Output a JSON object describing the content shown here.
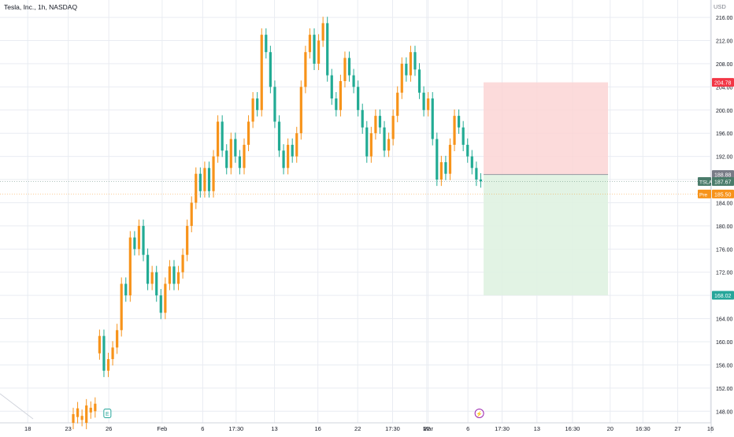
{
  "header": {
    "symbol_title": "Tesla, Inc., 1h, NASDAQ",
    "currency": "USD"
  },
  "colors": {
    "up": "#f7931a",
    "down": "#22ab94",
    "grid": "#e9ecf2",
    "stop_zone": "#fbd5d5",
    "target_zone": "#dff2e1",
    "stop_badge": "#f23645",
    "entry_badge": "#787b86",
    "last_badge": "#4b7c6b",
    "pre_badge": "#f7931a",
    "target_badge": "#26a69a"
  },
  "chart_data": {
    "type": "candlestick",
    "ylim": [
      146,
      219
    ],
    "xlim": [
      0,
      100
    ],
    "yticks": [
      148,
      152,
      156,
      160,
      164,
      168,
      172,
      176,
      180,
      184,
      188,
      192,
      196,
      200,
      204,
      208,
      212,
      216
    ],
    "xticks": [
      {
        "label": "18",
        "pos": 3.9
      },
      {
        "label": "23",
        "pos": 9.6
      },
      {
        "label": "26",
        "pos": 15.3
      },
      {
        "label": "Feb",
        "pos": 22.8
      },
      {
        "label": "6",
        "pos": 28.5
      },
      {
        "label": "17:30",
        "pos": 33.2
      },
      {
        "label": "13",
        "pos": 38.6
      },
      {
        "label": "16",
        "pos": 44.7
      },
      {
        "label": "22",
        "pos": 50.3
      },
      {
        "label": "17:30",
        "pos": 55.2
      },
      {
        "label": "27",
        "pos": 60.0
      },
      {
        "label": "Mar",
        "pos": 60.2
      },
      {
        "label": "6",
        "pos": 65.8
      },
      {
        "label": "17:30",
        "pos": 70.6
      },
      {
        "label": "13",
        "pos": 75.5
      },
      {
        "label": "16:30",
        "pos": 80.5
      },
      {
        "label": "20",
        "pos": 85.8
      },
      {
        "label": "16:30",
        "pos": 90.4
      },
      {
        "label": "27",
        "pos": 95.3
      },
      {
        "label": "16",
        "pos": 99.9
      }
    ],
    "candles": [
      [
        146,
        147.5
      ],
      [
        147,
        148.5
      ],
      [
        146.5,
        147.2
      ],
      [
        146,
        149
      ],
      [
        147.8,
        148.6
      ],
      [
        148,
        149.3
      ],
      [
        158,
        161
      ],
      [
        161,
        155
      ],
      [
        155,
        157
      ],
      [
        157,
        159
      ],
      [
        159,
        162
      ],
      [
        162,
        170
      ],
      [
        170,
        168
      ],
      [
        168,
        178
      ],
      [
        178,
        176
      ],
      [
        176,
        180
      ],
      [
        180,
        175
      ],
      [
        175,
        170
      ],
      [
        170,
        172
      ],
      [
        172,
        168
      ],
      [
        168,
        165
      ],
      [
        165,
        170
      ],
      [
        170,
        173
      ],
      [
        173,
        170
      ],
      [
        170,
        172
      ],
      [
        172,
        175
      ],
      [
        175,
        180
      ],
      [
        180,
        184
      ],
      [
        184,
        189
      ],
      [
        189,
        186
      ],
      [
        186,
        190
      ],
      [
        190,
        186
      ],
      [
        186,
        192
      ],
      [
        192,
        198
      ],
      [
        198,
        193
      ],
      [
        193,
        190
      ],
      [
        190,
        195
      ],
      [
        195,
        192
      ],
      [
        192,
        190
      ],
      [
        190,
        194
      ],
      [
        194,
        198
      ],
      [
        198,
        202
      ],
      [
        202,
        200
      ],
      [
        200,
        213
      ],
      [
        213,
        210
      ],
      [
        210,
        204
      ],
      [
        204,
        198
      ],
      [
        198,
        193
      ],
      [
        193,
        190
      ],
      [
        190,
        194
      ],
      [
        194,
        192
      ],
      [
        192,
        196
      ],
      [
        196,
        204
      ],
      [
        204,
        210
      ],
      [
        210,
        213
      ],
      [
        213,
        208
      ],
      [
        208,
        212
      ],
      [
        212,
        215
      ],
      [
        215,
        206
      ],
      [
        206,
        202
      ],
      [
        202,
        200
      ],
      [
        200,
        205
      ],
      [
        205,
        209
      ],
      [
        209,
        206
      ],
      [
        206,
        204
      ],
      [
        204,
        200
      ],
      [
        200,
        197
      ],
      [
        197,
        192
      ],
      [
        192,
        196
      ],
      [
        196,
        199
      ],
      [
        199,
        197
      ],
      [
        197,
        193
      ],
      [
        193,
        195
      ],
      [
        195,
        199
      ],
      [
        199,
        203
      ],
      [
        203,
        208
      ],
      [
        208,
        206
      ],
      [
        206,
        210
      ],
      [
        210,
        207
      ],
      [
        207,
        203
      ],
      [
        203,
        200
      ],
      [
        200,
        202
      ],
      [
        202,
        195
      ],
      [
        195,
        188
      ],
      [
        188,
        191
      ],
      [
        191,
        189
      ],
      [
        189,
        194
      ],
      [
        194,
        199
      ],
      [
        199,
        197
      ],
      [
        197,
        194
      ],
      [
        194,
        192
      ],
      [
        192,
        190
      ],
      [
        190,
        188
      ],
      [
        188,
        187.7
      ]
    ],
    "trade_box": {
      "stop": 204.78,
      "entry": 188.88,
      "target": 168.02,
      "x_start": 68.0,
      "x_end": 85.5
    },
    "price_labels": [
      {
        "text": "204.78",
        "value": 204.78,
        "kind": "stop"
      },
      {
        "text": "188.88",
        "value": 188.88,
        "kind": "entry"
      },
      {
        "text": "187.67",
        "value": 187.67,
        "kind": "last",
        "tag": "TSLA"
      },
      {
        "text": "185.50",
        "value": 185.5,
        "kind": "pre",
        "tag": "Pre"
      },
      {
        "text": "168.02",
        "value": 168.02,
        "kind": "target"
      }
    ],
    "markers": [
      {
        "text": "E",
        "pos": 15.1,
        "kind": "earnings"
      },
      {
        "text": "⚡",
        "pos": 67.4,
        "kind": "split"
      }
    ]
  }
}
